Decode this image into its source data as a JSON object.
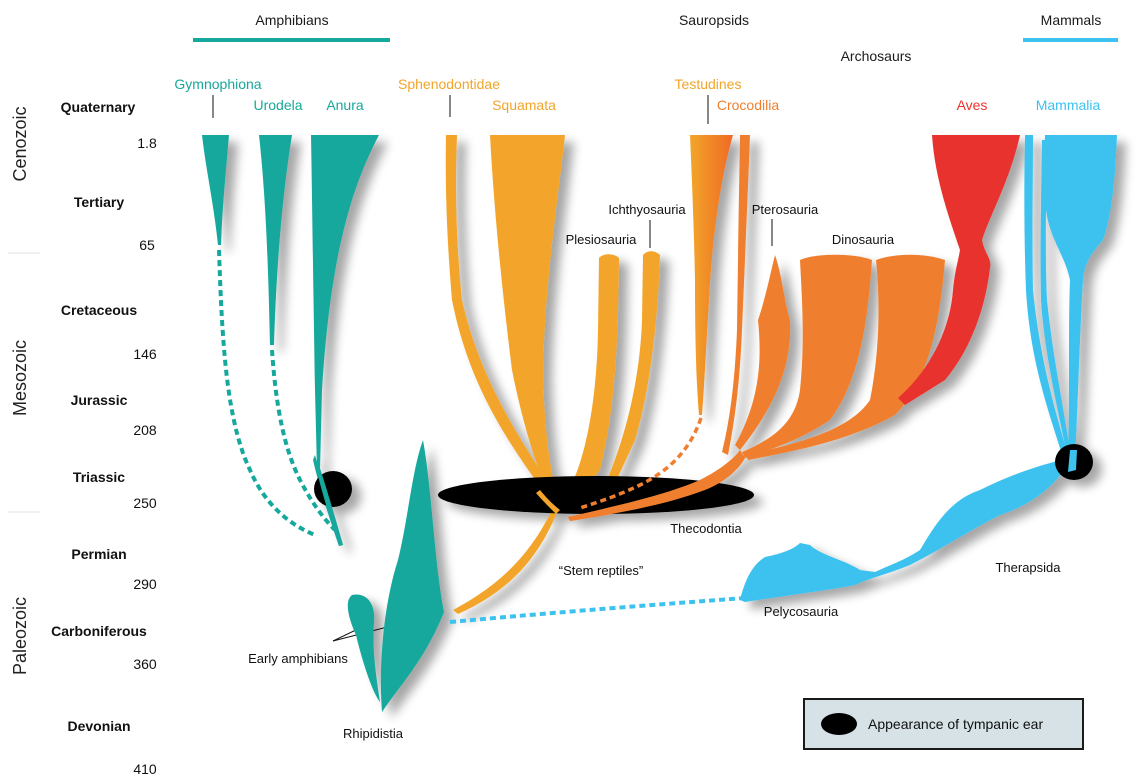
{
  "colors": {
    "amphibians": "#16a89c",
    "sauropsids": "#f2a52a",
    "archosaurs": "#ef7f2f",
    "birds": "#e8332f",
    "mammals": "#3dc2ef",
    "tympanic": "#000000",
    "legend_bg": "#d6e2e6"
  },
  "groups": {
    "amphibians": "Amphibians",
    "sauropsids": "Sauropsids",
    "archosaurs": "Archosaurs",
    "mammals": "Mammals"
  },
  "taxa_top": {
    "gymnophiona": "Gymnophiona",
    "urodela": "Urodela",
    "anura": "Anura",
    "sphenodontidae": "Sphenodontidae",
    "squamata": "Squamata",
    "testudines": "Testudines",
    "crocodilia": "Crocodilia",
    "aves": "Aves",
    "mammalia": "Mammalia"
  },
  "clades": {
    "ichthyosauria": "Ichthyosauria",
    "plesiosauria": "Plesiosauria",
    "pterosauria": "Pterosauria",
    "dinosauria": "Dinosauria",
    "thecodontia": "Thecodontia",
    "stem_reptiles": "“Stem reptiles”",
    "early_amphibians": "Early amphibians",
    "rhipidistia": "Rhipidistia",
    "pelycosauria": "Pelycosauria",
    "therapsida": "Therapsida"
  },
  "periods": [
    {
      "name": "Quaternary",
      "age": "1.8"
    },
    {
      "name": "Tertiary",
      "age": "65"
    },
    {
      "name": "Cretaceous",
      "age": "146"
    },
    {
      "name": "Jurassic",
      "age": "208"
    },
    {
      "name": "Triassic",
      "age": "250"
    },
    {
      "name": "Permian",
      "age": "290"
    },
    {
      "name": "Carboniferous",
      "age": "360"
    },
    {
      "name": "Devonian",
      "age": "410"
    }
  ],
  "eras": {
    "cenozoic": "Cenozoic",
    "mesozoic": "Mesozoic",
    "paleozoic": "Paleozoic"
  },
  "legend": {
    "label": "Appearance of tympanic ear"
  }
}
